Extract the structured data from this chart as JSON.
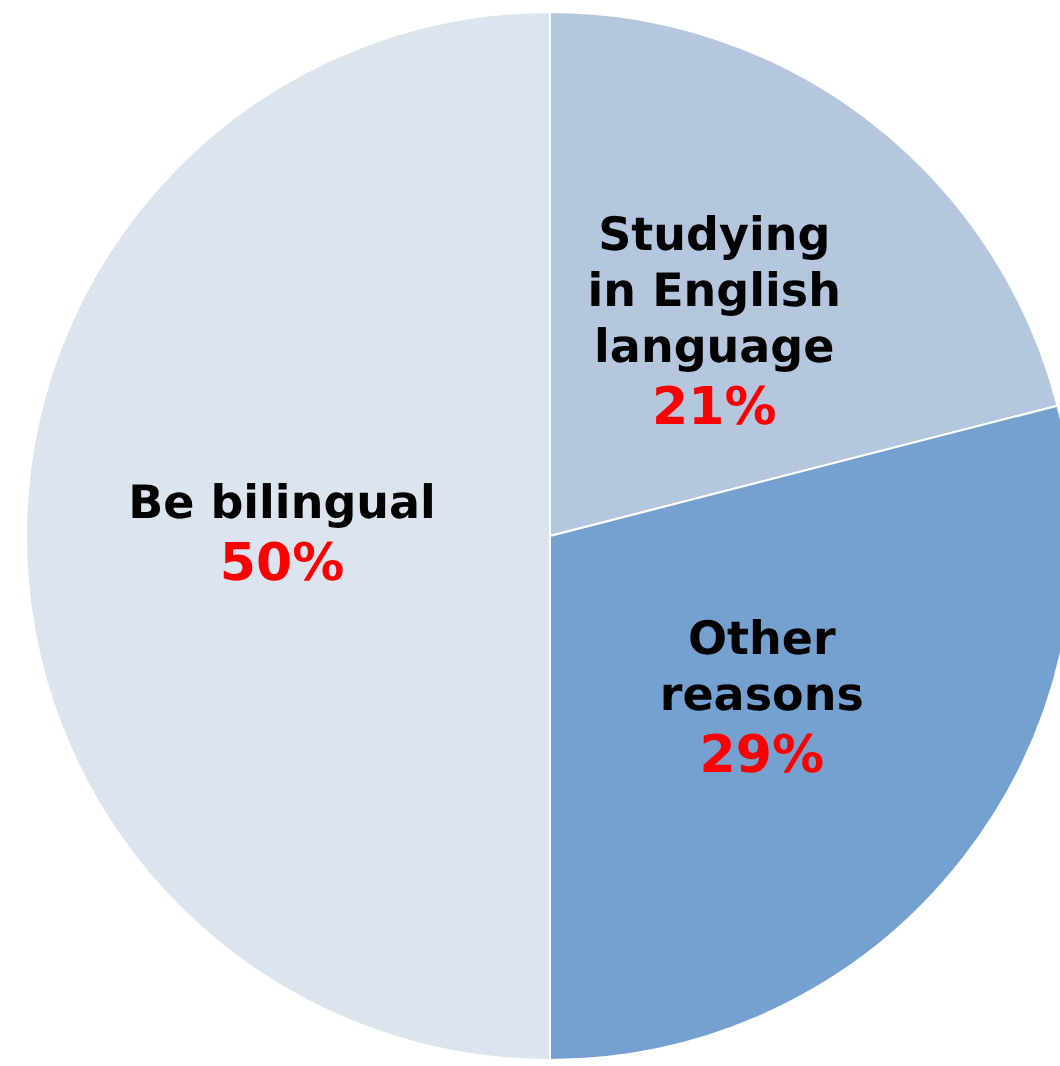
{
  "chart_data": {
    "type": "pie",
    "categories": [
      "Studying in English language",
      "Other reasons",
      "Be bilingual"
    ],
    "values": [
      21,
      29,
      50
    ],
    "value_labels": [
      "21%",
      "29%",
      "50%"
    ],
    "colors": [
      "#b4c7de",
      "#75a1d0",
      "#dce5ef"
    ]
  }
}
